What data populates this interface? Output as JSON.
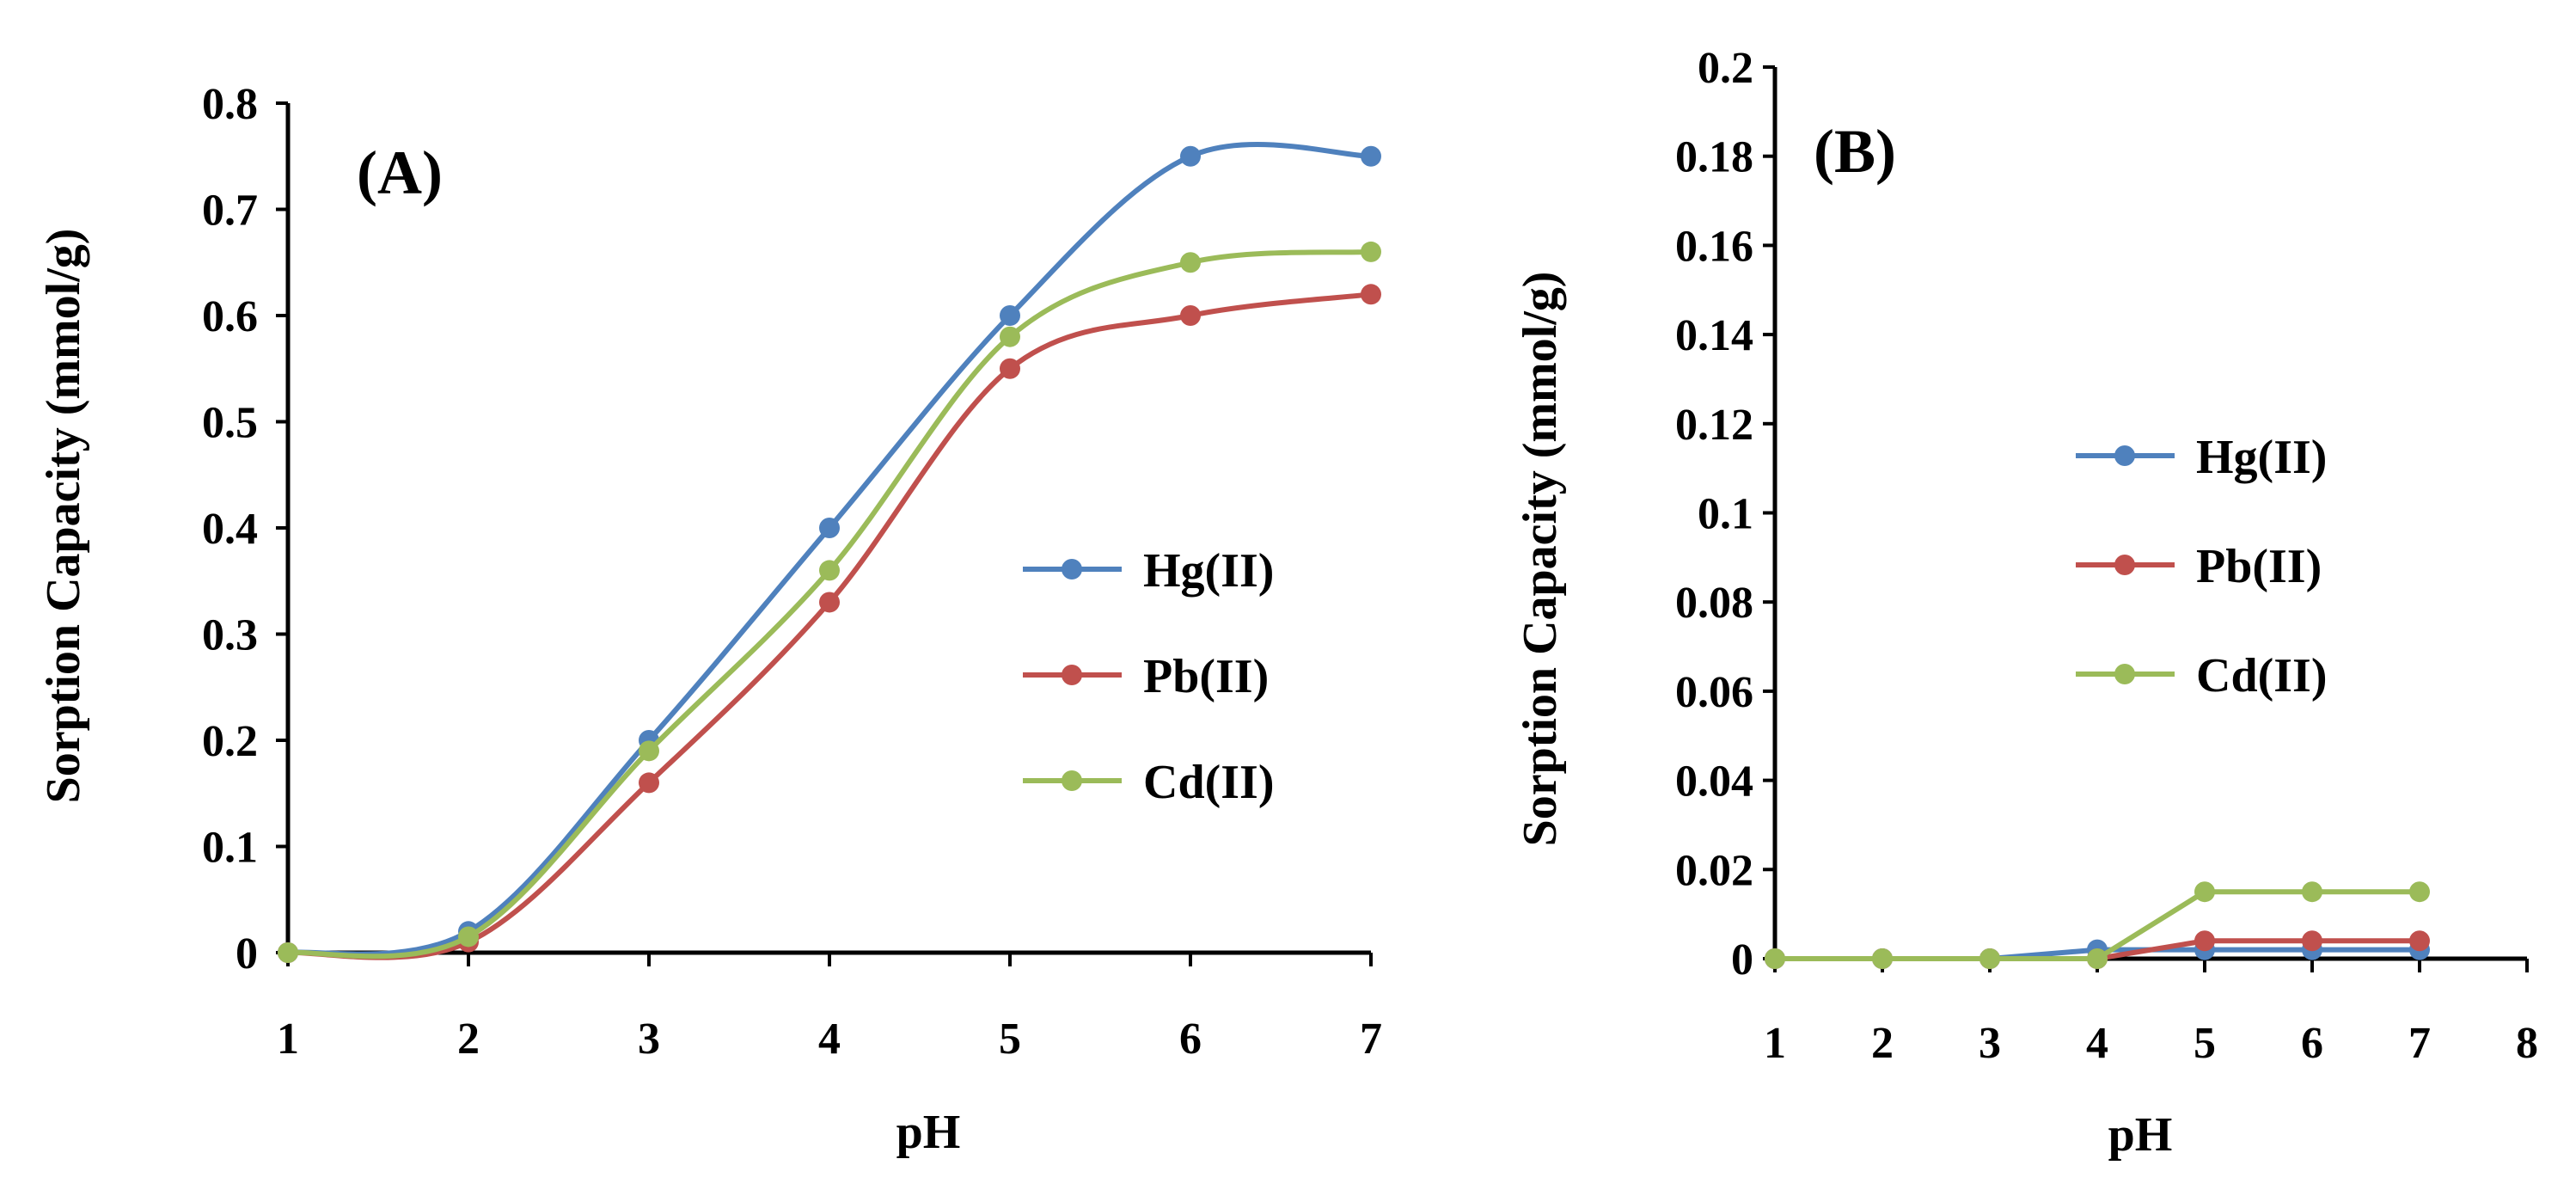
{
  "chart_data": [
    {
      "type": "line",
      "panel_label": "(A)",
      "xlabel": "pH",
      "ylabel": "Sorption  Capacity (mmol/g)",
      "x": [
        1,
        2,
        3,
        4,
        5,
        6,
        7
      ],
      "xlim": [
        1,
        7
      ],
      "ylim": [
        0,
        0.8
      ],
      "xticks": [
        "1",
        "2",
        "3",
        "4",
        "5",
        "6",
        "7"
      ],
      "yticks": [
        "0",
        "0.1",
        "0.2",
        "0.3",
        "0.4",
        "0.5",
        "0.6",
        "0.7",
        "0.8"
      ],
      "legend_position": "right",
      "series": [
        {
          "name": "Hg(II)",
          "color": "#4F81BD",
          "values": [
            0,
            0.02,
            0.2,
            0.4,
            0.6,
            0.75,
            0.75
          ]
        },
        {
          "name": "Pb(II)",
          "color": "#C0504D",
          "values": [
            0,
            0.01,
            0.16,
            0.33,
            0.55,
            0.6,
            0.62
          ]
        },
        {
          "name": "Cd(II)",
          "color": "#9BBB59",
          "values": [
            0,
            0.015,
            0.19,
            0.36,
            0.58,
            0.65,
            0.66
          ]
        }
      ]
    },
    {
      "type": "line",
      "panel_label": "(B)",
      "xlabel": "pH",
      "ylabel": "Sorption  Capacity (mmol/g)",
      "x": [
        1,
        2,
        3,
        4,
        5,
        6,
        7
      ],
      "xlim": [
        1,
        8
      ],
      "ylim": [
        0,
        0.2
      ],
      "xticks": [
        "1",
        "2",
        "3",
        "4",
        "5",
        "6",
        "7",
        "8"
      ],
      "yticks": [
        "0",
        "0.02",
        "0.04",
        "0.06",
        "0.08",
        "0.1",
        "0.12",
        "0.14",
        "0.16",
        "0.18",
        "0.2"
      ],
      "legend_position": "right",
      "series": [
        {
          "name": "Hg(II)",
          "color": "#4F81BD",
          "values": [
            0,
            0,
            0,
            0.002,
            0.002,
            0.002,
            0.002
          ]
        },
        {
          "name": "Pb(II)",
          "color": "#C0504D",
          "values": [
            0,
            0,
            0,
            0,
            0.004,
            0.004,
            0.004
          ]
        },
        {
          "name": "Cd(II)",
          "color": "#9BBB59",
          "values": [
            0,
            0,
            0,
            0,
            0.015,
            0.015,
            0.015
          ]
        }
      ]
    }
  ]
}
